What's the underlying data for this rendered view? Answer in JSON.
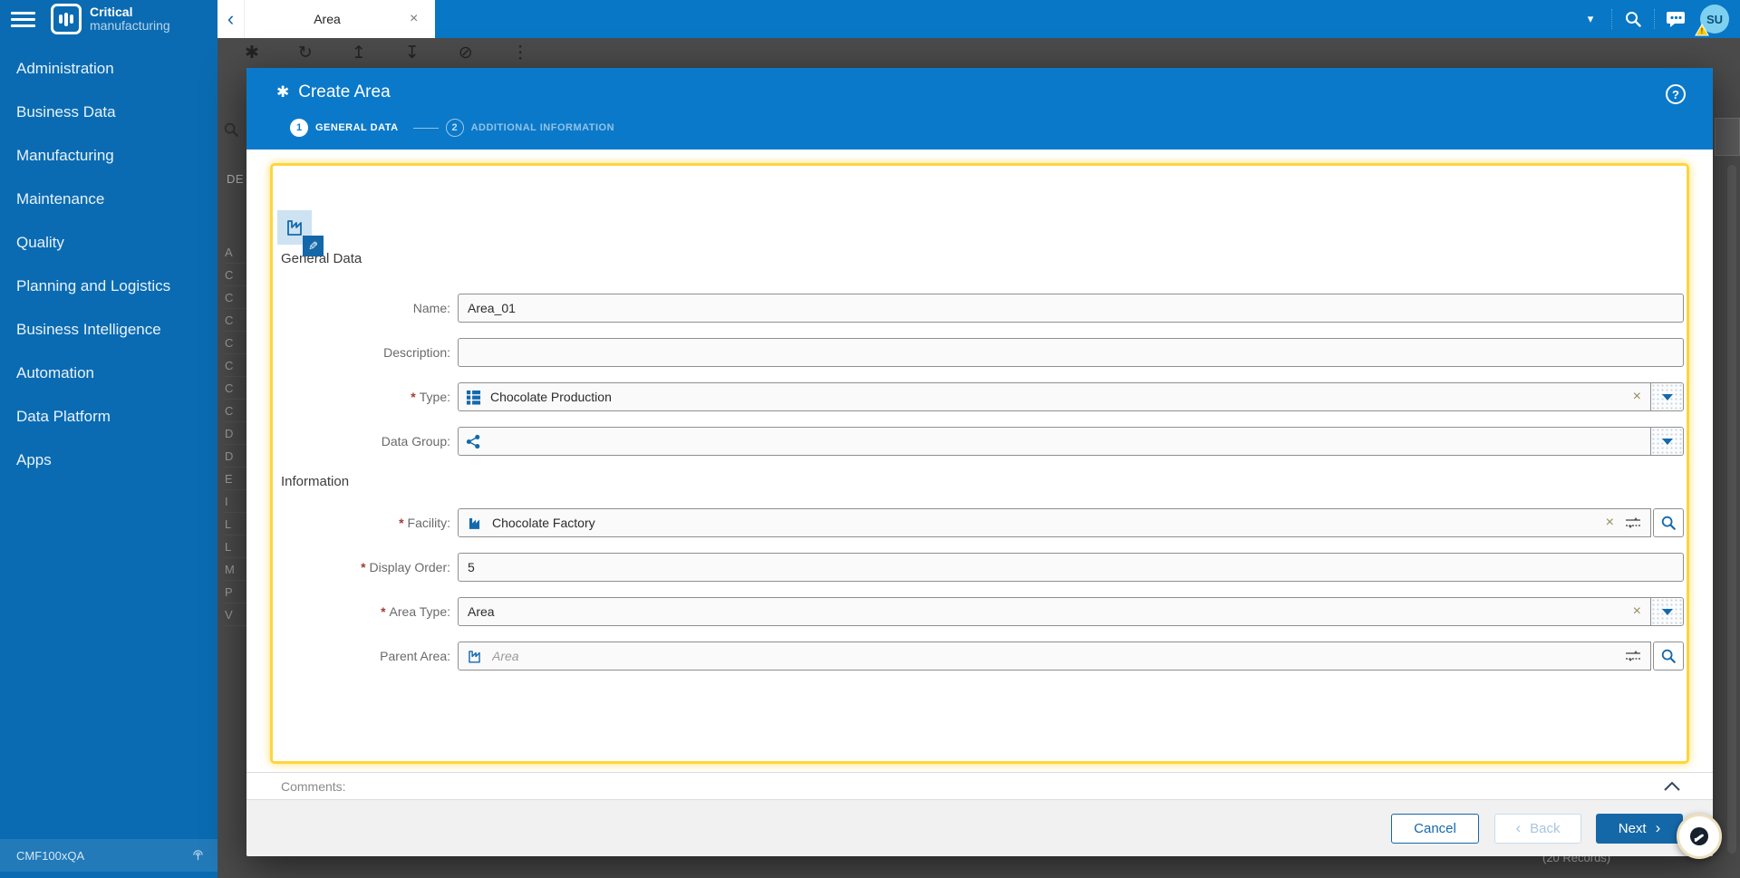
{
  "colors": {
    "brand_blue": "#0877c6",
    "sidebar_blue": "#0a6bb2",
    "accent_blue": "#1568a8",
    "highlight_yellow": "#fdd63c",
    "warning_yellow": "#ffcc00"
  },
  "brand": {
    "line1": "Critical",
    "line2": "manufacturing"
  },
  "topbar": {
    "tab": {
      "back_icon": "‹",
      "title": "Area",
      "close_icon": "×"
    },
    "dropdown_caret": "▾",
    "avatar": {
      "initials": "SU",
      "warning_mark": "!"
    }
  },
  "sidebar": {
    "items": [
      "Administration",
      "Business Data",
      "Manufacturing",
      "Maintenance",
      "Quality",
      "Planning and Logistics",
      "Business Intelligence",
      "Automation",
      "Data Platform",
      "Apps"
    ],
    "footer": {
      "environment": "CMF100xQA"
    }
  },
  "background": {
    "toolbar_icons": [
      "✱",
      "↻",
      "↥",
      "↧",
      "⊘",
      "⋮"
    ],
    "filter_text": "DE",
    "row_letters": [
      "A",
      "C",
      "C",
      "C",
      "C",
      "C",
      "C",
      "C",
      "D",
      "D",
      "E",
      "I",
      "L",
      "L",
      "M",
      "P",
      "V"
    ],
    "records_label": "(20 Records)"
  },
  "modal": {
    "title_icon": "✱",
    "title": "Create Area",
    "help_glyph": "?",
    "steps": [
      {
        "number": "1",
        "label": "GENERAL DATA"
      },
      {
        "number": "2",
        "label": "ADDITIONAL INFORMATION"
      }
    ],
    "sections": {
      "general": "General Data",
      "information": "Information"
    },
    "tile_edit_glyph": "✎",
    "fields": {
      "name": {
        "label": "Name:",
        "value": "Area_01"
      },
      "description": {
        "label": "Description:",
        "value": ""
      },
      "type": {
        "label": "Type:",
        "required_marker": "*",
        "value": "Chocolate Production",
        "clear_glyph": "×"
      },
      "data_group": {
        "label": "Data Group:",
        "value": ""
      },
      "facility": {
        "label": "Facility:",
        "required_marker": "*",
        "value": "Chocolate Factory",
        "clear_glyph": "×"
      },
      "display_order": {
        "label": "Display Order:",
        "required_marker": "*",
        "value": "5"
      },
      "area_type": {
        "label": "Area Type:",
        "required_marker": "*",
        "value": "Area",
        "clear_glyph": "×"
      },
      "parent_area": {
        "label": "Parent Area:",
        "placeholder": "Area"
      }
    },
    "comments_label": "Comments:",
    "buttons": {
      "cancel": "Cancel",
      "back": "Back",
      "back_chevron": "‹",
      "next": "Next",
      "next_chevron": "›"
    }
  }
}
